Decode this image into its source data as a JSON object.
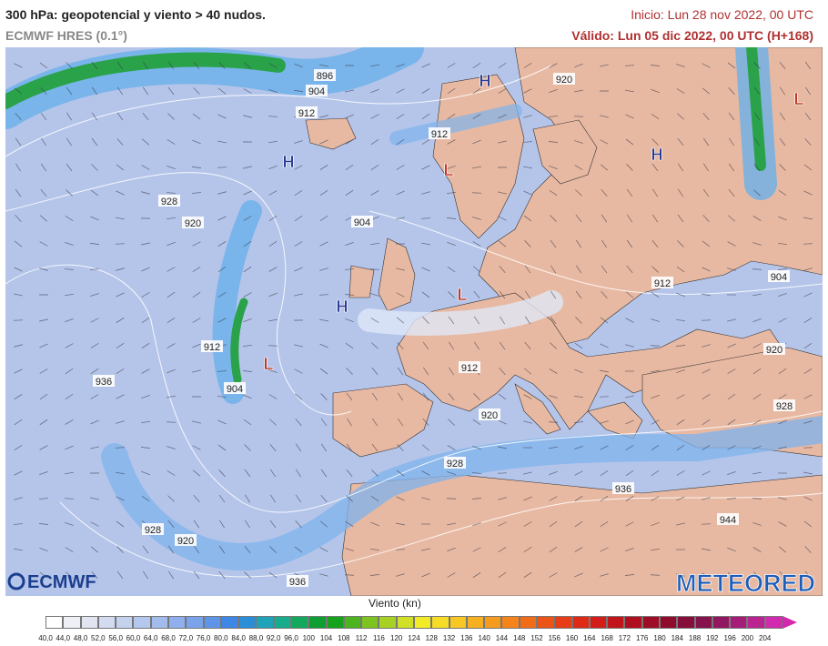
{
  "header": {
    "title": "300 hPa: geopotencial y viento > 40 nudos.",
    "subtitle": "ECMWF HRES (0.1°)",
    "init": "Inicio: Lun 28 nov 2022, 00 UTC",
    "valid": "Válido: Lun 05 dic 2022, 00 UTC (H+168)"
  },
  "contour_labels": [
    "896",
    "904",
    "912",
    "920",
    "912",
    "928",
    "920",
    "904",
    "912",
    "904",
    "912",
    "904",
    "936",
    "912",
    "920",
    "920",
    "928",
    "928",
    "936",
    "944",
    "928",
    "920",
    "936"
  ],
  "pressure_centers": [
    {
      "label": "H",
      "color": "#2b3a94"
    },
    {
      "label": "H",
      "color": "#2b3a94"
    },
    {
      "label": "L",
      "color": "#c0392b"
    },
    {
      "label": "H",
      "color": "#2b3a94"
    },
    {
      "label": "L",
      "color": "#c0392b"
    },
    {
      "label": "L",
      "color": "#c0392b"
    },
    {
      "label": "H",
      "color": "#2b3a94"
    },
    {
      "label": "L",
      "color": "#c0392b"
    }
  ],
  "logos": [
    "ECMWF",
    "METEORED"
  ],
  "legend": {
    "title": "Viento (kn)",
    "labels": [
      "40,0",
      "44,0",
      "48,0",
      "52,0",
      "56,0",
      "60,0",
      "64,0",
      "68,0",
      "72,0",
      "76,0",
      "80,0",
      "84,0",
      "88,0",
      "92,0",
      "96,0",
      "100",
      "104",
      "108",
      "112",
      "116",
      "120",
      "124",
      "128",
      "132",
      "136",
      "140",
      "144",
      "148",
      "152",
      "156",
      "160",
      "164",
      "168",
      "172",
      "176",
      "180",
      "184",
      "188",
      "192",
      "196",
      "200",
      "204"
    ],
    "colors": [
      "#ffffff",
      "#eef0f6",
      "#e0e5f1",
      "#d2dbef",
      "#c4d2ee",
      "#b4c8ee",
      "#a2bced",
      "#8fb0ec",
      "#7aa3eb",
      "#5f95e9",
      "#3f87e6",
      "#2a8fd6",
      "#1fa3b8",
      "#17ad8c",
      "#13a85c",
      "#0e9e32",
      "#16a21c",
      "#4cb41e",
      "#7ec420",
      "#a8d223",
      "#d0e026",
      "#f2ec28",
      "#f6dc26",
      "#f7c723",
      "#f7b120",
      "#f69b1d",
      "#f4841b",
      "#f06c19",
      "#ec5417",
      "#e63d16",
      "#de2a16",
      "#d21d18",
      "#c2141b",
      "#b00f1f",
      "#9e0c25",
      "#8f0c2d",
      "#850e3a",
      "#86124c",
      "#921761",
      "#a51c79",
      "#bb2393",
      "#d22aae"
    ]
  }
}
